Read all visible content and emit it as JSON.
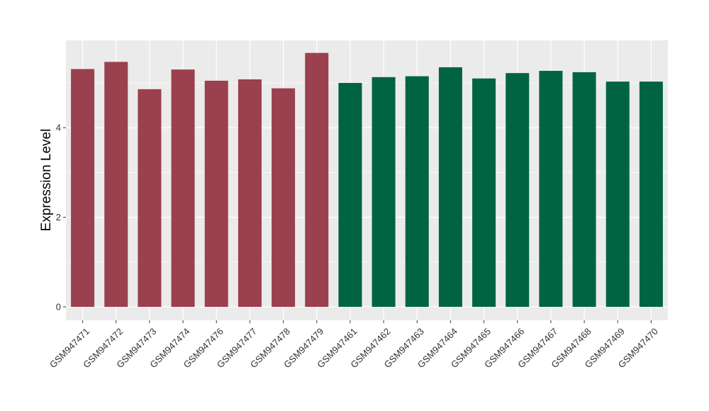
{
  "chart_data": {
    "type": "bar",
    "title": "",
    "xlabel": "",
    "ylabel": "Expression Level",
    "ylim": [
      -0.3,
      5.95
    ],
    "yticks": [
      0,
      2,
      4
    ],
    "grid": true,
    "categories": [
      "GSM947471",
      "GSM947472",
      "GSM947473",
      "GSM947474",
      "GSM947476",
      "GSM947477",
      "GSM947478",
      "GSM947479",
      "GSM947461",
      "GSM947462",
      "GSM947463",
      "GSM947464",
      "GSM947465",
      "GSM947466",
      "GSM947467",
      "GSM947468",
      "GSM947469",
      "GSM947470"
    ],
    "values": [
      5.31,
      5.47,
      4.86,
      5.3,
      5.05,
      5.08,
      4.88,
      5.67,
      5.0,
      5.13,
      5.15,
      5.35,
      5.1,
      5.22,
      5.27,
      5.24,
      5.03,
      5.03
    ],
    "groups": [
      {
        "color": "#9b404e",
        "count": 8
      },
      {
        "color": "#006443",
        "count": 10
      }
    ],
    "colors": {
      "panel_bg": "#ebebeb",
      "grid_major": "#ffffff",
      "tick": "#333333"
    }
  }
}
